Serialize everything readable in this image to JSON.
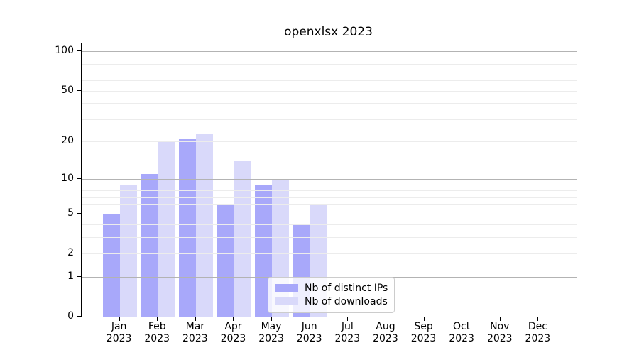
{
  "chart_data": {
    "type": "bar",
    "title": "openxlsx 2023",
    "categories": [
      "Jan",
      "Feb",
      "Mar",
      "Apr",
      "May",
      "Jun",
      "Jul",
      "Aug",
      "Sep",
      "Oct",
      "Nov",
      "Dec"
    ],
    "category_year": "2023",
    "series": [
      {
        "name": "Nb of distinct IPs",
        "color": "#a8a8fa",
        "values": [
          5,
          11,
          21,
          6,
          9,
          4,
          0,
          0,
          0,
          0,
          0,
          0
        ]
      },
      {
        "name": "Nb of downloads",
        "color": "#d9d9fa",
        "values": [
          9,
          20,
          23,
          14,
          10,
          6,
          0,
          0,
          0,
          0,
          0,
          0
        ]
      }
    ],
    "xlabel": "",
    "ylabel": "",
    "y_scale": "log1p",
    "y_ticks": [
      0,
      1,
      2,
      5,
      10,
      20,
      50,
      100
    ],
    "y_max_log": 2.065,
    "major_gridlines": [
      1,
      10,
      100
    ],
    "minor_gridlines": [
      2,
      3,
      4,
      5,
      6,
      7,
      8,
      9,
      20,
      30,
      40,
      50,
      60,
      70,
      80,
      90
    ],
    "grid_on": true,
    "legend_position": "lower center",
    "colors": {
      "major_grid": "#b3b3b3",
      "minor_grid": "#ececec",
      "spine": "#000000",
      "text": "#000000",
      "legend_border": "#cccccc",
      "background": "#ffffff"
    }
  }
}
